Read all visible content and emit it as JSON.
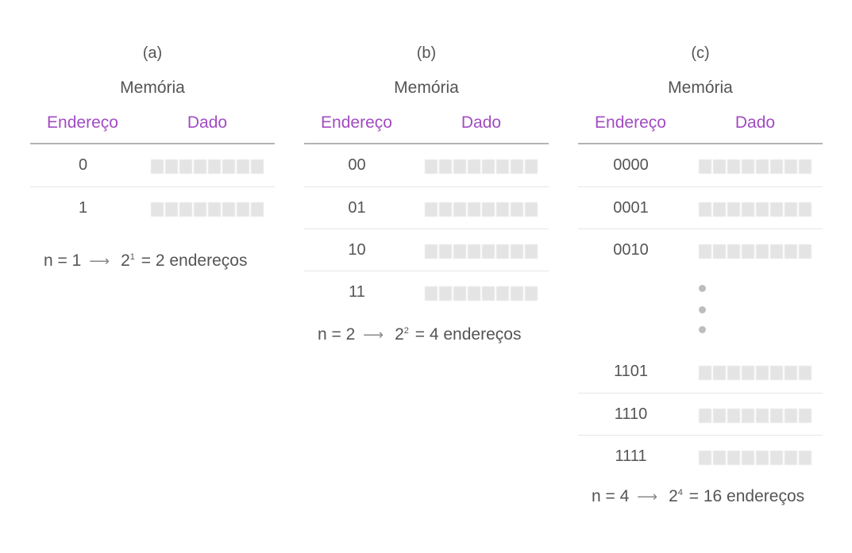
{
  "panels": [
    {
      "label": "(a)",
      "title": "Memória",
      "header_address": "Endereço",
      "header_data": "Dado",
      "addresses": [
        "0",
        "1"
      ],
      "formula": {
        "lhs": "n = 1",
        "base": "2",
        "exp": "1",
        "rhs": "= 2 endereços"
      }
    },
    {
      "label": "(b)",
      "title": "Memória",
      "header_address": "Endereço",
      "header_data": "Dado",
      "addresses": [
        "00",
        "01",
        "10",
        "11"
      ],
      "formula": {
        "lhs": "n = 2",
        "base": "2",
        "exp": "2",
        "rhs": "= 4 endereços"
      }
    },
    {
      "label": "(c)",
      "title": "Memória",
      "header_address": "Endereço",
      "header_data": "Dado",
      "addresses_top": [
        "0000",
        "0001",
        "0010"
      ],
      "addresses_bottom": [
        "1101",
        "1110",
        "1111"
      ],
      "formula": {
        "lhs": "n = 4",
        "base": "2",
        "exp": "4",
        "rhs": "= 16 endereços"
      }
    }
  ],
  "colors": {
    "header": "#a24cc2",
    "text": "#555555",
    "cell": "#e4e4e4"
  },
  "arrow_glyph": "⟶"
}
